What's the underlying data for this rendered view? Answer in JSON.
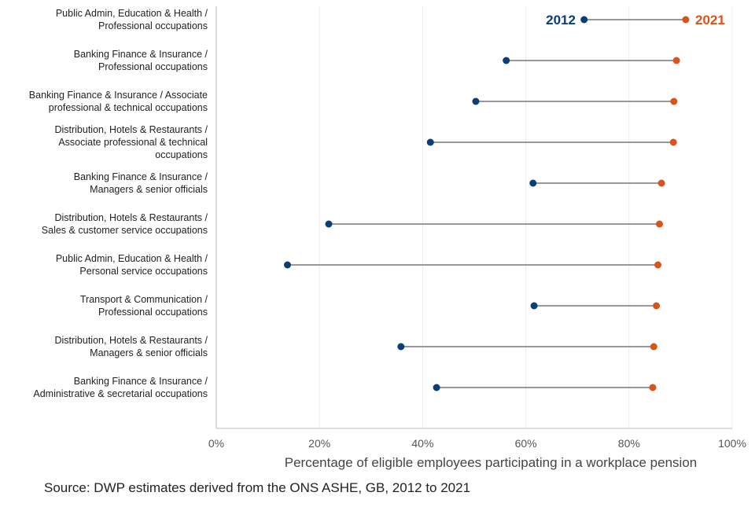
{
  "colors": {
    "year_2012": "#0b3d78",
    "year_2021": "#d8541a",
    "connector": "#999999",
    "grid": "#ececec",
    "axis": "#bbbbbb"
  },
  "chart_data": {
    "type": "dumbbell",
    "xlabel": "Percentage of eligible employees participating in a workplace pension",
    "source": "Source: DWP estimates derived from the ONS ASHE, GB, 2012 to 2021",
    "xlim": [
      0,
      100
    ],
    "xticks": [
      "0%",
      "20%",
      "40%",
      "60%",
      "80%",
      "100%"
    ],
    "grid": "vertical",
    "legend_labels": {
      "start": "2012",
      "end": "2021"
    },
    "categories": [
      [
        "Public Admin, Education & Health /",
        "Professional occupations"
      ],
      [
        "Banking Finance & Insurance /",
        "Professional occupations"
      ],
      [
        "Banking Finance & Insurance / Associate",
        "professional & technical occupations"
      ],
      [
        "Distribution, Hotels & Restaurants /",
        "Associate professional & technical",
        "occupations"
      ],
      [
        "Banking Finance & Insurance /",
        "Managers & senior officials"
      ],
      [
        "Distribution, Hotels & Restaurants /",
        "Sales & customer service occupations"
      ],
      [
        "Public Admin, Education & Health /",
        "Personal service occupations"
      ],
      [
        "Transport & Communication /",
        "Professional occupations"
      ],
      [
        "Distribution, Hotels & Restaurants /",
        "Managers & senior officials"
      ],
      [
        "Banking Finance & Insurance /",
        "Administrative & secretarial occupations"
      ]
    ],
    "series": [
      {
        "name": "2012",
        "values": [
          71.3,
          56.2,
          50.3,
          41.5,
          61.4,
          21.8,
          13.8,
          61.6,
          35.8,
          42.7
        ]
      },
      {
        "name": "2021",
        "values": [
          91.0,
          89.2,
          88.7,
          88.6,
          86.3,
          85.9,
          85.6,
          85.3,
          84.8,
          84.6
        ]
      }
    ]
  }
}
